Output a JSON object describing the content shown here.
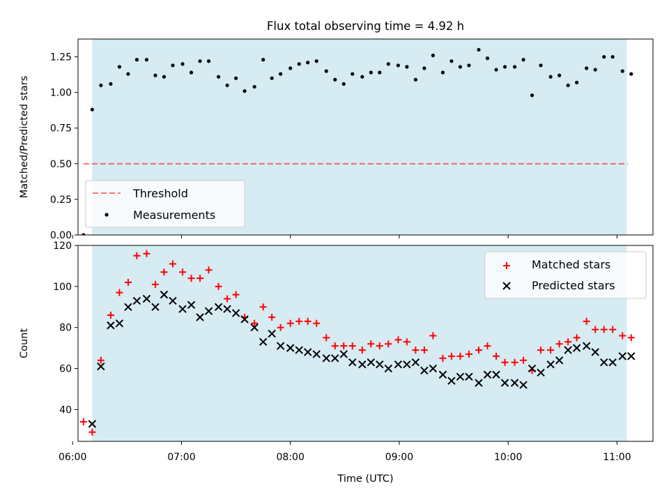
{
  "title": "Flux total observing time = 4.92 h",
  "colors": {
    "shade": "#add8e6",
    "threshold": "#ff0000",
    "measurement": "#000000",
    "matched": "#ff0000",
    "predicted": "#000000"
  },
  "chart_data": [
    {
      "type": "scatter",
      "ylabel": "Matched/Predicted stars",
      "xlim": [
        6.05,
        11.33
      ],
      "ylim": [
        0,
        1.375
      ],
      "yticks": [
        0.0,
        0.25,
        0.5,
        0.75,
        1.0,
        1.25
      ],
      "ytick_labels": [
        "0.00",
        "0.25",
        "0.50",
        "0.75",
        "1.00",
        "1.25"
      ],
      "shaded_span": [
        6.18,
        11.09
      ],
      "legend": {
        "placement": "lower-left",
        "entries": [
          "Threshold",
          "Measurements"
        ]
      },
      "threshold": {
        "name": "Threshold",
        "y": 0.5,
        "x": [
          6.1,
          11.1
        ]
      },
      "series": [
        {
          "name": "Measurements",
          "x": [
            6.1,
            6.18,
            6.26,
            6.35,
            6.43,
            6.51,
            6.59,
            6.68,
            6.76,
            6.84,
            6.92,
            7.01,
            7.09,
            7.17,
            7.25,
            7.34,
            7.42,
            7.5,
            7.58,
            7.67,
            7.75,
            7.83,
            7.91,
            8.0,
            8.08,
            8.16,
            8.24,
            8.33,
            8.41,
            8.49,
            8.57,
            8.66,
            8.74,
            8.82,
            8.9,
            8.99,
            9.07,
            9.15,
            9.23,
            9.31,
            9.4,
            9.48,
            9.56,
            9.64,
            9.73,
            9.81,
            9.89,
            9.97,
            10.06,
            10.14,
            10.22,
            10.3,
            10.39,
            10.47,
            10.55,
            10.63,
            10.72,
            10.8,
            10.88,
            10.96,
            11.05,
            11.13
          ],
          "y": [
            0.0,
            0.88,
            1.05,
            1.06,
            1.18,
            1.13,
            1.23,
            1.23,
            1.12,
            1.11,
            1.19,
            1.2,
            1.14,
            1.22,
            1.22,
            1.11,
            1.05,
            1.1,
            1.01,
            1.04,
            1.23,
            1.1,
            1.13,
            1.17,
            1.2,
            1.21,
            1.22,
            1.15,
            1.09,
            1.06,
            1.13,
            1.11,
            1.14,
            1.14,
            1.2,
            1.19,
            1.18,
            1.09,
            1.17,
            1.26,
            1.14,
            1.22,
            1.18,
            1.19,
            1.3,
            1.24,
            1.16,
            1.18,
            1.18,
            1.23,
            0.98,
            1.19,
            1.11,
            1.12,
            1.05,
            1.07,
            1.17,
            1.16,
            1.25,
            1.25,
            1.15,
            1.13
          ]
        }
      ]
    },
    {
      "type": "scatter",
      "xlabel": "Time (UTC)",
      "ylabel": "Count",
      "xlim": [
        6.05,
        11.33
      ],
      "ylim": [
        24.5,
        120
      ],
      "yticks": [
        40,
        60,
        80,
        100,
        120
      ],
      "ytick_labels": [
        "40",
        "60",
        "80",
        "100",
        "120"
      ],
      "xticks": [
        6,
        7,
        8,
        9,
        10,
        11
      ],
      "xtick_labels": [
        "06:00",
        "07:00",
        "08:00",
        "09:00",
        "10:00",
        "11:00"
      ],
      "shaded_span": [
        6.18,
        11.09
      ],
      "legend": {
        "placement": "upper-right",
        "entries": [
          "Matched stars",
          "Predicted stars"
        ]
      },
      "series": [
        {
          "name": "Matched stars",
          "marker": "plus",
          "x": [
            6.1,
            6.18,
            6.26,
            6.35,
            6.43,
            6.51,
            6.59,
            6.68,
            6.76,
            6.84,
            6.92,
            7.01,
            7.09,
            7.17,
            7.25,
            7.34,
            7.42,
            7.5,
            7.58,
            7.67,
            7.75,
            7.83,
            7.91,
            8.0,
            8.08,
            8.16,
            8.24,
            8.33,
            8.41,
            8.49,
            8.57,
            8.66,
            8.74,
            8.82,
            8.9,
            8.99,
            9.07,
            9.15,
            9.23,
            9.31,
            9.4,
            9.48,
            9.56,
            9.64,
            9.73,
            9.81,
            9.89,
            9.97,
            10.06,
            10.14,
            10.22,
            10.3,
            10.39,
            10.47,
            10.55,
            10.63,
            10.72,
            10.8,
            10.88,
            10.96,
            11.05,
            11.13
          ],
          "y": [
            34,
            29,
            64,
            86,
            97,
            102,
            115,
            116,
            101,
            107,
            111,
            107,
            104,
            104,
            108,
            100,
            94,
            96,
            85,
            82,
            90,
            85,
            80,
            82,
            83,
            83,
            82,
            75,
            71,
            71,
            71,
            69,
            72,
            71,
            72,
            74,
            73,
            69,
            69,
            76,
            65,
            66,
            66,
            67,
            69,
            71,
            66,
            63,
            63,
            64,
            59,
            69,
            69,
            72,
            73,
            75,
            83,
            79,
            79,
            79,
            76,
            75
          ]
        },
        {
          "name": "Predicted stars",
          "marker": "x",
          "x": [
            6.18,
            6.26,
            6.35,
            6.43,
            6.51,
            6.59,
            6.68,
            6.76,
            6.84,
            6.92,
            7.01,
            7.09,
            7.17,
            7.25,
            7.34,
            7.42,
            7.5,
            7.58,
            7.67,
            7.75,
            7.83,
            7.91,
            8.0,
            8.08,
            8.16,
            8.24,
            8.33,
            8.41,
            8.49,
            8.57,
            8.66,
            8.74,
            8.82,
            8.9,
            8.99,
            9.07,
            9.15,
            9.23,
            9.31,
            9.4,
            9.48,
            9.56,
            9.64,
            9.73,
            9.81,
            9.89,
            9.97,
            10.06,
            10.14,
            10.22,
            10.3,
            10.39,
            10.47,
            10.55,
            10.63,
            10.72,
            10.8,
            10.88,
            10.96,
            11.05,
            11.13
          ],
          "y": [
            33,
            61,
            81,
            82,
            90,
            93,
            94,
            90,
            96,
            93,
            89,
            91,
            85,
            88,
            90,
            89,
            87,
            84,
            80,
            73,
            77,
            71,
            70,
            69,
            68,
            67,
            65,
            65,
            67,
            63,
            62,
            63,
            62,
            60,
            62,
            62,
            63,
            59,
            60,
            57,
            54,
            56,
            56,
            53,
            57,
            57,
            53,
            53,
            52,
            60,
            58,
            62,
            64,
            69,
            70,
            71,
            68,
            63,
            63,
            66,
            66
          ]
        }
      ]
    }
  ]
}
